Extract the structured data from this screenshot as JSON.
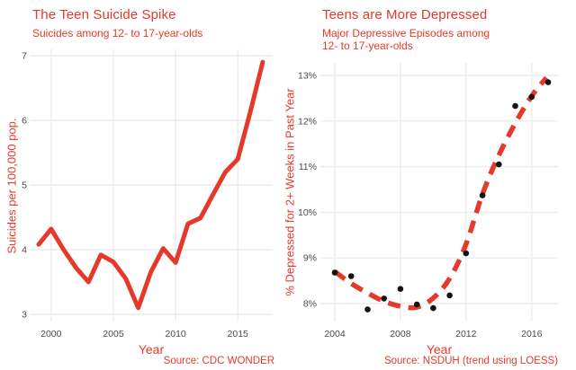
{
  "page": {
    "background": "#FFFFFF"
  },
  "colors": {
    "accent_red": "#E5392C",
    "gridline": "#ECECEC",
    "point_black": "#141414",
    "tick_text": "#4A4A4A"
  },
  "chart_data": [
    {
      "id": "teen-suicide-spike",
      "type": "line",
      "title": "The Teen Suicide Spike",
      "subtitle": "Suicides among 12- to 17-year-olds",
      "xlabel": "Year",
      "ylabel": "Suicides per 100,000 pop.",
      "source": "Source: CDC WONDER",
      "xlim": [
        1999,
        2017
      ],
      "ylim": [
        3,
        7
      ],
      "grid": true,
      "legend": "none",
      "x_ticks": [
        2000,
        2005,
        2010,
        2015
      ],
      "x_tick_labels": [
        "2000",
        "2005",
        "2010",
        "2015"
      ],
      "y_ticks": [
        3,
        4,
        5,
        6,
        7
      ],
      "y_tick_labels": [
        "3",
        "4",
        "5",
        "6",
        "7"
      ],
      "series": [
        {
          "name": "suicides_per_100000",
          "x": [
            1999,
            2000,
            2001,
            2002,
            2003,
            2004,
            2005,
            2006,
            2007,
            2008,
            2009,
            2010,
            2011,
            2012,
            2013,
            2014,
            2015,
            2016,
            2017
          ],
          "values": [
            4.08,
            4.32,
            4.0,
            3.72,
            3.5,
            3.92,
            3.81,
            3.55,
            3.1,
            3.65,
            4.02,
            3.8,
            4.4,
            4.49,
            4.85,
            5.2,
            5.4,
            6.13,
            6.9
          ]
        }
      ]
    },
    {
      "id": "teens-more-depressed",
      "type": "scatter",
      "title": "Teens are More Depressed",
      "subtitle": "Major Depressive Episodes among\n12- to 17-year-olds",
      "xlabel": "Year",
      "ylabel": "% Depressed for 2+ Weeks in Past Year",
      "source": "Source: NSDUH (trend using LOESS)",
      "xlim": [
        2004,
        2017
      ],
      "ylim": [
        8,
        13
      ],
      "grid": true,
      "legend": "none",
      "x_ticks": [
        2004,
        2008,
        2012,
        2016
      ],
      "x_tick_labels": [
        "2004",
        "2008",
        "2012",
        "2016"
      ],
      "y_ticks": [
        8,
        9,
        10,
        11,
        12,
        13
      ],
      "y_tick_labels": [
        "8%",
        "9%",
        "10%",
        "11%",
        "12%",
        "13%"
      ],
      "points": {
        "name": "pct_depressed",
        "x": [
          2004,
          2005,
          2006,
          2007,
          2008,
          2009,
          2010,
          2011,
          2012,
          2013,
          2014,
          2015,
          2016,
          2017
        ],
        "values": [
          8.68,
          8.6,
          7.87,
          8.11,
          8.32,
          7.98,
          7.9,
          8.18,
          9.1,
          10.37,
          11.05,
          12.33,
          12.53,
          12.85
        ]
      },
      "trend": {
        "name": "LOESS trend",
        "style": "dashed",
        "x": [
          2004,
          2005,
          2006,
          2007,
          2008,
          2009,
          2010,
          2011,
          2012,
          2013,
          2014,
          2015,
          2016,
          2016.9
        ],
        "values": [
          8.7,
          8.44,
          8.23,
          8.05,
          7.94,
          7.92,
          8.12,
          8.55,
          9.3,
          10.4,
          11.25,
          11.95,
          12.55,
          12.95
        ]
      }
    }
  ]
}
